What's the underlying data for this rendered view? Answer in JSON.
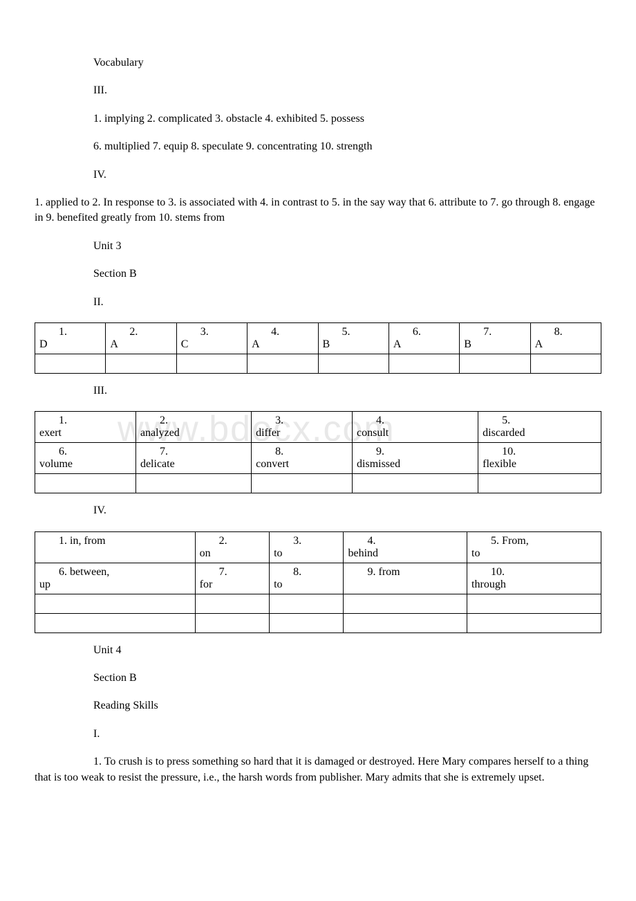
{
  "watermark": "www.bdocx.com",
  "p1": "Vocabulary",
  "p2": "III.",
  "p3": "1. implying  2. complicated   3. obstacle   4. exhibited  5. possess",
  "p4": "6. multiplied  7. equip   8. speculate   9. concentrating  10. strength",
  "p5": "IV.",
  "p6": "1. applied to   2. In response to  3. is associated with  4. in contrast to   5. in the say way that  6. attribute to  7. go through   8. engage in  9. benefited greatly from  10. stems from",
  "p7": "Unit 3",
  "p8": "Section B",
  "p9": "II.",
  "table1": {
    "r1": [
      {
        "n": "1.",
        "w": "D"
      },
      {
        "n": "2.",
        "w": "A"
      },
      {
        "n": "3.",
        "w": "C"
      },
      {
        "n": "4.",
        "w": "A"
      },
      {
        "n": "5.",
        "w": "B"
      },
      {
        "n": "6.",
        "w": "A"
      },
      {
        "n": "7.",
        "w": "B"
      },
      {
        "n": "8.",
        "w": "A"
      }
    ]
  },
  "p10": "III.",
  "table2": {
    "r1": [
      {
        "n": "1.",
        "w": "exert"
      },
      {
        "n": "2.",
        "w": "analyzed"
      },
      {
        "n": "3.",
        "w": "differ"
      },
      {
        "n": "4.",
        "w": "consult"
      },
      {
        "n": "5.",
        "w": "discarded"
      }
    ],
    "r2": [
      {
        "n": "6.",
        "w": "volume"
      },
      {
        "n": "7.",
        "w": "delicate"
      },
      {
        "n": "8.",
        "w": "convert"
      },
      {
        "n": "9.",
        "w": "dismissed"
      },
      {
        "n": "10.",
        "w": "flexible"
      }
    ]
  },
  "p11": "IV.",
  "table3": {
    "r1": [
      {
        "n": "1. in, from",
        "w": ""
      },
      {
        "n": "2.",
        "w": "on"
      },
      {
        "n": "3.",
        "w": "to"
      },
      {
        "n": "4.",
        "w": "behind"
      },
      {
        "n": "5. From,",
        "w": "to"
      }
    ],
    "r2": [
      {
        "n": "6. between,",
        "w": "up"
      },
      {
        "n": "7.",
        "w": "for"
      },
      {
        "n": "8.",
        "w": "to"
      },
      {
        "n": "9. from",
        "w": ""
      },
      {
        "n": "10.",
        "w": "through"
      }
    ]
  },
  "p12": "Unit 4",
  "p13": "Section B",
  "p14": "Reading Skills",
  "p15": "I.",
  "p16": "1. To crush is to press something so hard that it is damaged or destroyed. Here Mary compares herself to a thing that is too weak to resist the pressure, i.e., the harsh words from publisher. Mary admits that she is extremely upset."
}
